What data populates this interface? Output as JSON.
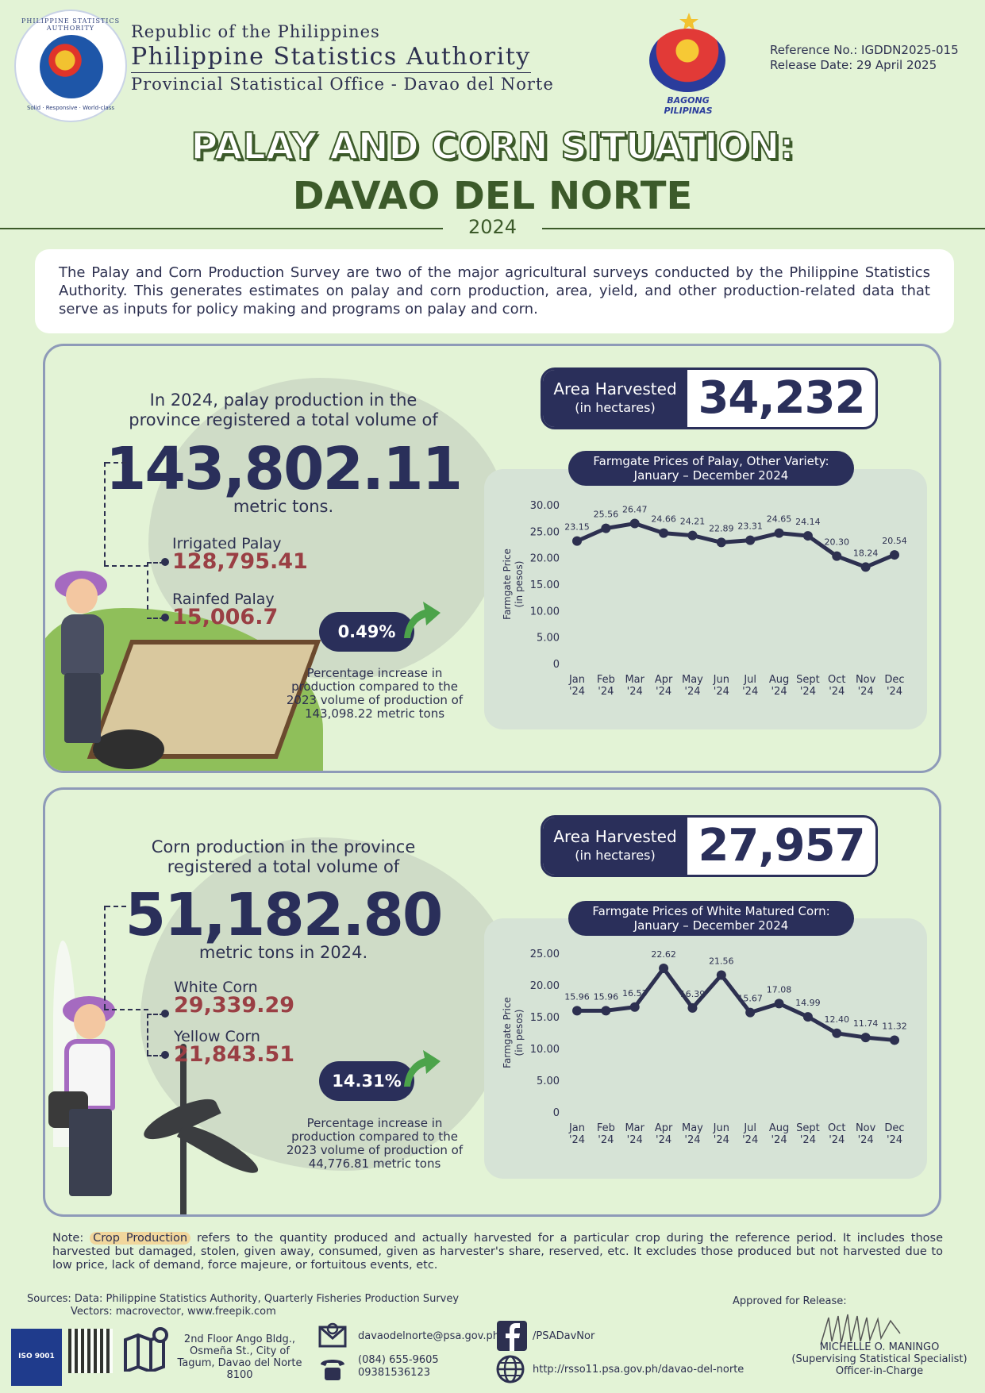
{
  "header": {
    "seal_top_text": "PHILIPPINE STATISTICS AUTHORITY",
    "seal_bottom_text": "Solid · Responsive · World-class",
    "line1": "Republic of the Philippines",
    "line2": "Philippine Statistics Authority",
    "line3": "Provincial Statistical Office - Davao del Norte",
    "bp_label": "BAGONG PILIPINAS",
    "reference": "Reference No.: IGDDN2025-015",
    "release": "Release Date: 29 April 2025"
  },
  "title": {
    "line1": "PALAY AND CORN SITUATION:",
    "line2": "DAVAO DEL NORTE",
    "year": "2024"
  },
  "intro": "The Palay and Corn Production Survey are two of the major agricultural surveys conducted by the Philippine Statistics Authority.  This generates estimates on palay and corn production, area, yield, and other production-related data that serve as inputs for policy making and programs on palay and corn.",
  "palay": {
    "lead": "In 2024, palay production in the province registered a total volume of",
    "total": "143,802.11",
    "unit": "metric tons.",
    "sub1_label": "Irrigated Palay",
    "sub1_value": "128,795.41",
    "sub2_label": "Rainfed Palay",
    "sub2_value": "15,006.7",
    "pct": "0.49%",
    "pct_note": "Percentage increase in production compared to the 2023 volume of production of 143,098.22 metric tons",
    "area_label1": "Area Harvested",
    "area_label2": "(in hectares)",
    "area_value": "34,232",
    "chart_title_1": "Farmgate Prices of Palay, Other Variety:",
    "chart_title_2": "January – December 2024"
  },
  "corn": {
    "lead": "Corn production in the province registered a total volume of",
    "total": "51,182.80",
    "unit": "metric tons in 2024.",
    "sub1_label": "White Corn",
    "sub1_value": "29,339.29",
    "sub2_label": "Yellow Corn",
    "sub2_value": "21,843.51",
    "pct": "14.31%",
    "pct_note": "Percentage increase in production compared to the 2023 volume of production of 44,776.81 metric tons",
    "area_label1": "Area Harvested",
    "area_label2": "(in hectares)",
    "area_value": "27,957",
    "chart_title_1": "Farmgate Prices of White Matured Corn:",
    "chart_title_2": "January – December 2024"
  },
  "chart_data": [
    {
      "type": "line",
      "title": "Farmgate Prices of Palay, Other Variety: January – December 2024",
      "ylabel": "Farmgate Price (in pesos)",
      "ylabel_1": "Farmgate Price",
      "ylabel_2": "(in pesos)",
      "categories": [
        "Jan '24",
        "Feb '24",
        "Mar '24",
        "Apr '24",
        "May '24",
        "Jun '24",
        "Jul '24",
        "Aug '24",
        "Sept '24",
        "Oct '24",
        "Nov '24",
        "Dec '24"
      ],
      "values": [
        23.15,
        25.56,
        26.47,
        24.66,
        24.21,
        22.89,
        23.31,
        24.65,
        24.14,
        20.3,
        18.24,
        20.54
      ],
      "labels": [
        "23.15",
        "25.56",
        "26.47",
        "24.66",
        "24.21",
        "22.89",
        "23.31",
        "24.65",
        "24.14",
        "20.30",
        "18.24",
        "20.54"
      ],
      "yticks": [
        "0",
        "5.00",
        "10.00",
        "15.00",
        "20.00",
        "25.00",
        "30.00"
      ],
      "ylim": [
        0,
        30
      ],
      "color": "#2d3050"
    },
    {
      "type": "line",
      "title": "Farmgate Prices of White Matured Corn: January – December 2024",
      "ylabel": "Farmgate Price (in pesos)",
      "ylabel_1": "Farmgate Price",
      "ylabel_2": "(in pesos)",
      "categories": [
        "Jan '24",
        "Feb '24",
        "Mar '24",
        "Apr '24",
        "May '24",
        "Jun '24",
        "Jul '24",
        "Aug '24",
        "Sept '24",
        "Oct '24",
        "Nov '24",
        "Dec '24"
      ],
      "values": [
        15.96,
        15.96,
        16.53,
        22.62,
        16.39,
        21.56,
        15.67,
        17.08,
        14.99,
        12.4,
        11.74,
        11.32
      ],
      "labels": [
        "15.96",
        "15.96",
        "16.53",
        "22.62",
        "16.39",
        "21.56",
        "15.67",
        "17.08",
        "14.99",
        "12.40",
        "11.74",
        "11.32"
      ],
      "yticks": [
        "0",
        "5.00",
        "10.00",
        "15.00",
        "20.00",
        "25.00"
      ],
      "ylim": [
        0,
        25
      ],
      "color": "#2d3050"
    }
  ],
  "footer": {
    "note_prefix": "Note:",
    "note_term": "Crop Production",
    "note_body": "refers to the quantity produced and actually harvested for a particular crop during the reference period. It includes those harvested but damaged, stolen, given away, consumed, given as harvester's share, reserved, etc. It excludes those produced but not harvested due to low price, lack of demand, force majeure, or fortuitous events, etc.",
    "sources": "Sources: Data: Philippine Statistics Authority, Quarterly Fisheries Production Survey",
    "vectors": "Vectors: macrovector, www.freepik.com",
    "approved": "Approved for Release:",
    "officer_name": "MICHELLE O. MANINGO",
    "officer_title": "(Supervising Statistical Specialist)",
    "officer_role": "Officer-in-Charge",
    "iso_text": "ISO 9001",
    "address": "2nd Floor Ango Bldg., Osmeña St., City of Tagum, Davao del Norte 8100",
    "email": "davaodelnorte@psa.gov.ph",
    "phone1": "(084) 655-9605",
    "phone2": "09381536123",
    "facebook": "/PSADavNor",
    "website": "http://rsso11.psa.gov.ph/davao-del-norte"
  }
}
